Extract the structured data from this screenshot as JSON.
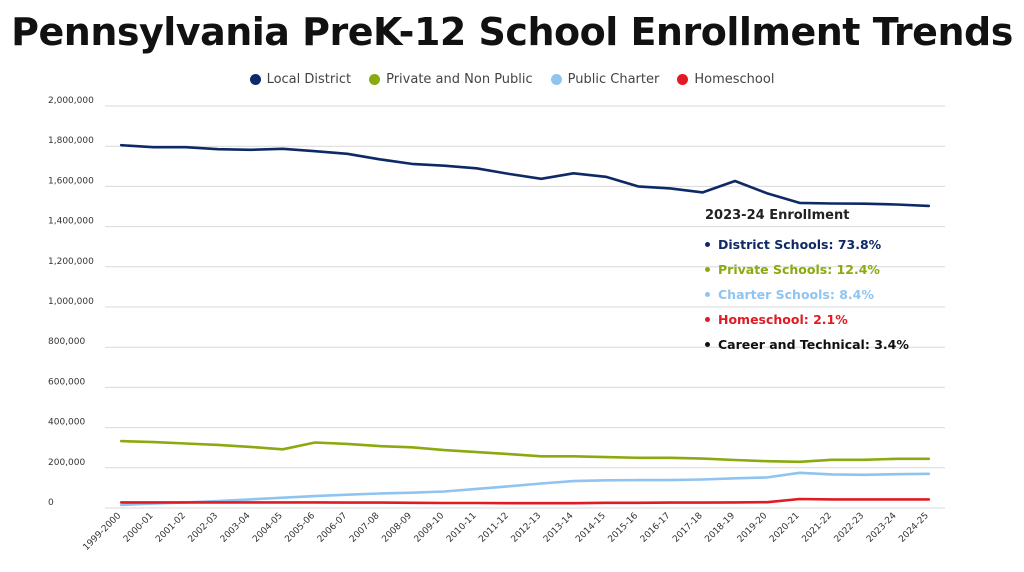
{
  "title": "Pennsylvania PreK-12 School Enrollment Trends",
  "legend": [
    {
      "label": "Local District",
      "color": "#0e2a66"
    },
    {
      "label": "Private and Non Public",
      "color": "#8aaa10"
    },
    {
      "label": "Public Charter",
      "color": "#90c4f0"
    },
    {
      "label": "Homeschool",
      "color": "#e01b24"
    }
  ],
  "callout": {
    "title": "2023-24 Enrollment",
    "items": [
      {
        "label": "District Schools: 73.8%",
        "color": "#0e2a66"
      },
      {
        "label": "Private Schools: 12.4%",
        "color": "#8aaa10"
      },
      {
        "label": "Charter Schools: 8.4%",
        "color": "#90c4f0"
      },
      {
        "label": "Homeschool: 2.1%",
        "color": "#e01b24"
      },
      {
        "label": "Career and Technical: 3.4%",
        "color": "#111111"
      }
    ]
  },
  "chart_data": {
    "type": "line",
    "x": [
      "1999-2000",
      "2000-01",
      "2001-02",
      "2002-03",
      "2003-04",
      "2004-05",
      "2005-06",
      "2006-07",
      "2007-08",
      "2008-09",
      "2009-10",
      "2010-11",
      "2011-12",
      "2012-13",
      "2013-14",
      "2014-15",
      "2015-16",
      "2016-17",
      "2017-18",
      "2018-19",
      "2019-20",
      "2020-21",
      "2021-22",
      "2022-23",
      "2023-24",
      "2024-25"
    ],
    "y_ticks": [
      "2,000,000",
      "1,800,000",
      "1,600,000",
      "1,400,000",
      "1,200,000",
      "1,000,000",
      "800,000",
      "600,000",
      "400,000",
      "200,000",
      "0"
    ],
    "ylim": [
      0,
      2000000
    ],
    "grid": true,
    "series": [
      {
        "name": "Local District",
        "color": "#0e2a66",
        "values": [
          1805000,
          1795000,
          1795000,
          1785000,
          1782000,
          1787000,
          1775000,
          1762000,
          1735000,
          1712000,
          1703000,
          1690000,
          1662000,
          1638000,
          1665000,
          1648000,
          1600000,
          1590000,
          1570000,
          1627000,
          1565000,
          1518000,
          1515000,
          1514000,
          1510000,
          1503000
        ]
      },
      {
        "name": "Private and Non Public",
        "color": "#8aaa10",
        "values": [
          333000,
          328000,
          321000,
          314000,
          304000,
          292000,
          326000,
          319000,
          308000,
          302000,
          288000,
          278000,
          268000,
          257000,
          257000,
          253000,
          250000,
          250000,
          246000,
          239000,
          233000,
          230000,
          240000,
          240000,
          245000,
          245000
        ]
      },
      {
        "name": "Public Charter",
        "color": "#90c4f0",
        "values": [
          15000,
          22000,
          28000,
          35000,
          43000,
          51000,
          59000,
          66000,
          72000,
          76000,
          82000,
          95000,
          108000,
          122000,
          134000,
          138000,
          139000,
          139000,
          142000,
          148000,
          152000,
          175000,
          167000,
          165000,
          168000,
          170000
        ]
      },
      {
        "name": "Homeschool",
        "color": "#e01b24",
        "values": [
          28000,
          28000,
          28000,
          28000,
          28000,
          28000,
          28000,
          27000,
          27000,
          26000,
          25000,
          25000,
          24000,
          24000,
          24000,
          26000,
          26000,
          27000,
          27000,
          28000,
          29000,
          45000,
          43000,
          43000,
          43000,
          43000
        ]
      }
    ]
  }
}
